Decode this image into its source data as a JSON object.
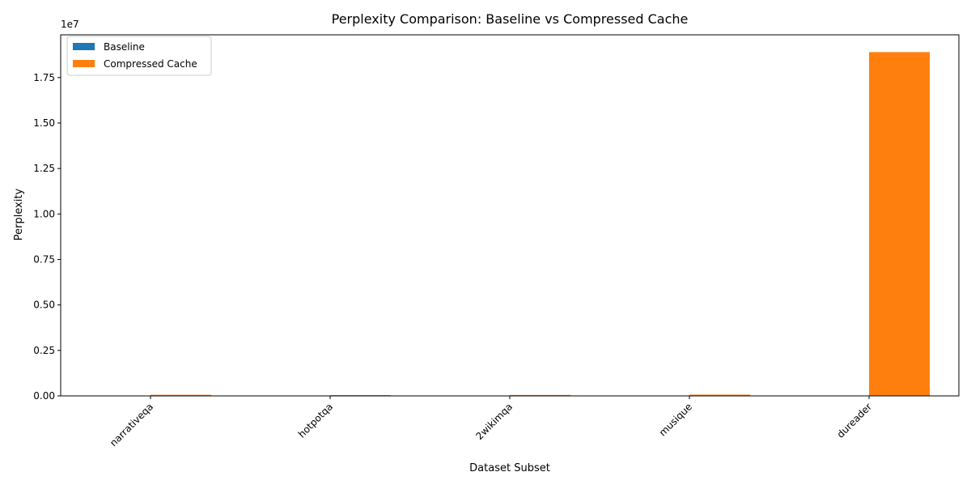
{
  "chart_data": {
    "type": "bar",
    "title": "Perplexity Comparison: Baseline vs Compressed Cache",
    "xlabel": "Dataset Subset",
    "ylabel": "Perplexity",
    "y_offset_label": "1e7",
    "categories": [
      "narrativeqa",
      "hotpotqa",
      "2wikimqa",
      "musique",
      "dureader"
    ],
    "series": [
      {
        "name": "Baseline",
        "color": "#1f77b4",
        "values": [
          8,
          6,
          7,
          9,
          5
        ]
      },
      {
        "name": "Compressed Cache",
        "color": "#ff7f0e",
        "values": [
          60000,
          45000,
          52000,
          70000,
          18900000
        ]
      }
    ],
    "ylim": [
      0,
      19850000
    ],
    "yticks": [
      0,
      2500000,
      5000000,
      7500000,
      10000000,
      12500000,
      15000000,
      17500000
    ],
    "ytick_labels": [
      "0.00",
      "0.25",
      "0.50",
      "0.75",
      "1.00",
      "1.25",
      "1.50",
      "1.75"
    ],
    "legend_position": "upper-left",
    "grid": false
  }
}
